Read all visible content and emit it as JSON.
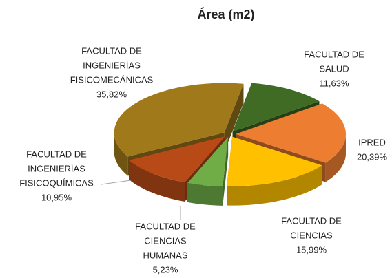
{
  "chart_data": {
    "type": "pie",
    "title": "Área (m2)",
    "categories": [
      [
        "FACULTAD DE",
        "SALUD"
      ],
      [
        "IPRED"
      ],
      [
        "FACULTAD DE",
        "CIENCIAS"
      ],
      [
        "FACULTAD DE",
        "CIENCIAS",
        "HUMANAS"
      ],
      [
        "FACULTAD DE",
        "INGENIERÍAS",
        "FISICOQUÍMICAS"
      ],
      [
        "FACULTAD DE",
        "INGENIERÍAS",
        "FISICOMECÁNICAS"
      ]
    ],
    "values": [
      11.63,
      20.39,
      15.99,
      5.23,
      10.95,
      35.82
    ],
    "value_labels": [
      "11,63%",
      "20,39%",
      "15,99%",
      "5,23%",
      "10,95%",
      "35,82%"
    ],
    "colors": [
      "#3f6b25",
      "#ed7d31",
      "#ffc000",
      "#70ad47",
      "#b84a17",
      "#a07a1a"
    ]
  }
}
